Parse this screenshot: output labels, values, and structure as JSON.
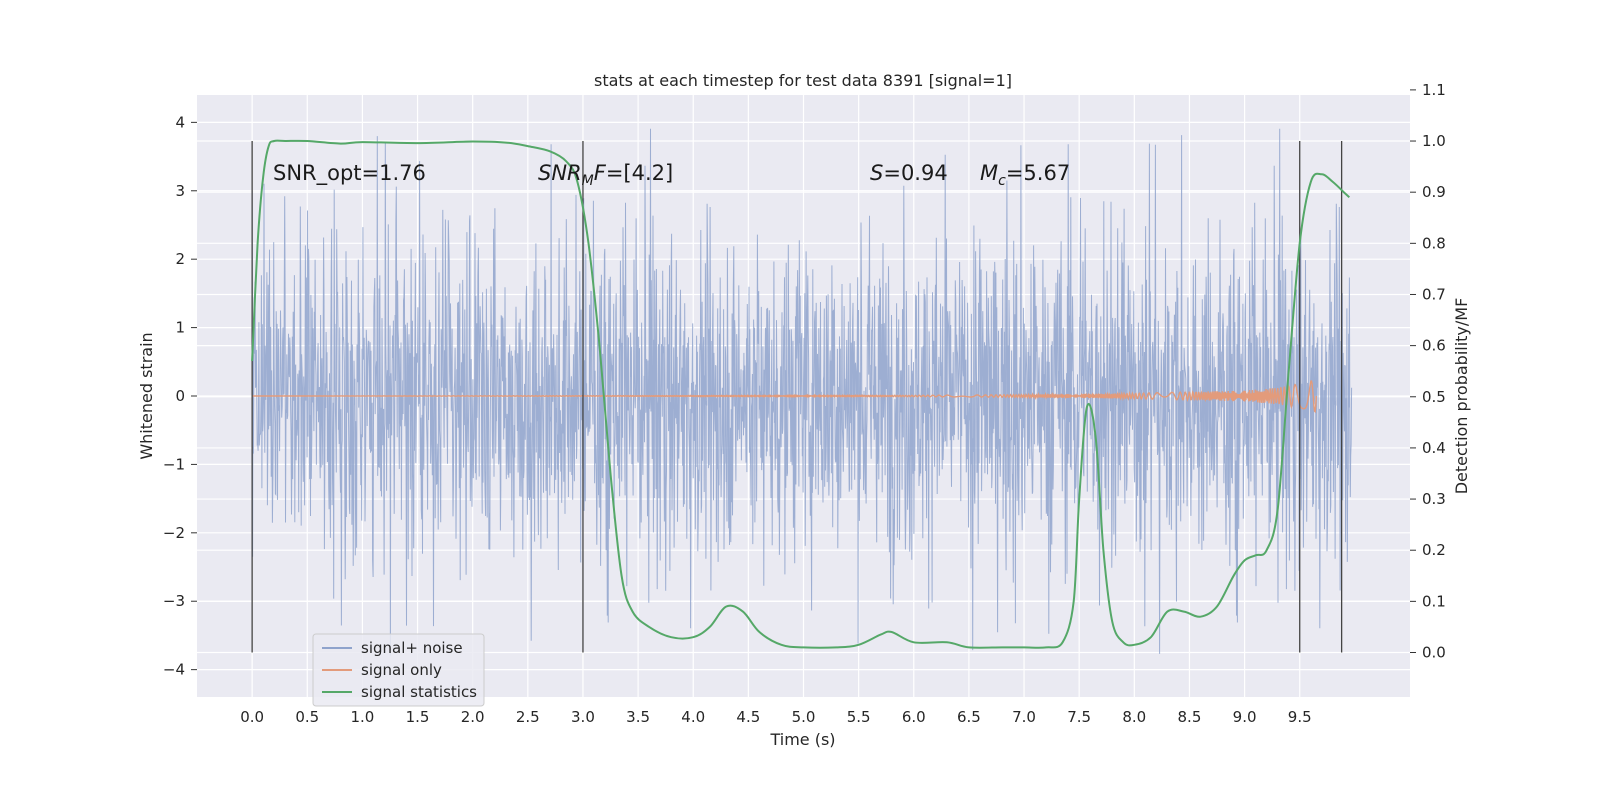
{
  "chart_data": {
    "type": "line",
    "title": "stats at each timestep for test data 8391 [signal=1]",
    "xlabel": "Time (s)",
    "ylabel": "Whitened strain",
    "y2label": "Detection probability/MF",
    "xlim": [
      -0.5,
      10.5
    ],
    "ylim": [
      -4.4,
      4.4
    ],
    "y2lim": [
      -0.087,
      1.09
    ],
    "xticks": [
      "0.0",
      "0.5",
      "1.0",
      "1.5",
      "2.0",
      "2.5",
      "3.0",
      "3.5",
      "4.0",
      "4.5",
      "5.0",
      "5.5",
      "6.0",
      "6.5",
      "7.0",
      "7.5",
      "8.0",
      "8.5",
      "9.0",
      "9.5"
    ],
    "yticks": [
      "4",
      "3",
      "2",
      "1",
      "0",
      "−1",
      "−2",
      "−3",
      "−4"
    ],
    "y2ticks": [
      "1.1",
      "1.0",
      "0.9",
      "0.8",
      "0.7",
      "0.6",
      "0.5",
      "0.4",
      "0.3",
      "0.2",
      "0.1",
      "0.0"
    ],
    "grid": true,
    "legend_position": "lower-left",
    "annotations": {
      "snr_opt": "SNR_opt=1.76",
      "snr_mf_base": "SNR",
      "snr_mf_sub": "M",
      "snr_mf_rest": "F=[4.2]",
      "s_var": "S",
      "s_val": "=0.94",
      "mc_var": "M",
      "mc_sub": "c",
      "mc_val": "=5.67"
    },
    "vlines_x": [
      0.0,
      3.0,
      9.5,
      9.88
    ],
    "series": [
      {
        "name": "signal+ noise",
        "color": "#8fa3cc",
        "axis": "left",
        "x_range": [
          0.0,
          9.97
        ],
        "envelope": {
          "typical": 1.9,
          "peak_max": 4.05,
          "peak_min": -3.95
        }
      },
      {
        "name": "signal only",
        "color": "#e39b7b",
        "axis": "left",
        "x": [
          0.0,
          6.0,
          7.0,
          8.0,
          8.5,
          9.0,
          9.3,
          9.5,
          9.6,
          9.65
        ],
        "amplitude": [
          0.0,
          0.01,
          0.02,
          0.04,
          0.06,
          0.08,
          0.12,
          0.18,
          0.22,
          0.24
        ]
      },
      {
        "name": "signal statistics",
        "color": "#55a868",
        "axis": "right",
        "x": [
          0.0,
          0.05,
          0.1,
          0.15,
          0.2,
          0.3,
          0.5,
          0.8,
          1.0,
          1.5,
          2.0,
          2.3,
          2.5,
          2.7,
          2.85,
          2.95,
          3.05,
          3.15,
          3.25,
          3.35,
          3.45,
          3.6,
          3.8,
          4.0,
          4.15,
          4.3,
          4.45,
          4.6,
          4.8,
          5.0,
          5.3,
          5.5,
          5.7,
          5.8,
          6.0,
          6.3,
          6.5,
          6.8,
          7.0,
          7.2,
          7.35,
          7.45,
          7.5,
          7.57,
          7.65,
          7.72,
          7.8,
          7.9,
          8.0,
          8.15,
          8.3,
          8.45,
          8.6,
          8.75,
          8.9,
          9.0,
          9.1,
          9.2,
          9.3,
          9.4,
          9.5,
          9.6,
          9.7,
          9.8,
          9.9,
          9.95
        ],
        "y": [
          0.57,
          0.8,
          0.93,
          0.99,
          1.0,
          1.0,
          1.0,
          0.995,
          0.998,
          0.996,
          0.999,
          0.997,
          0.99,
          0.98,
          0.96,
          0.92,
          0.8,
          0.6,
          0.35,
          0.15,
          0.08,
          0.05,
          0.03,
          0.03,
          0.05,
          0.09,
          0.08,
          0.04,
          0.015,
          0.01,
          0.01,
          0.015,
          0.035,
          0.04,
          0.02,
          0.02,
          0.01,
          0.01,
          0.01,
          0.01,
          0.02,
          0.1,
          0.3,
          0.48,
          0.42,
          0.2,
          0.06,
          0.02,
          0.015,
          0.03,
          0.08,
          0.08,
          0.07,
          0.09,
          0.15,
          0.18,
          0.19,
          0.2,
          0.28,
          0.55,
          0.8,
          0.92,
          0.935,
          0.92,
          0.9,
          0.89
        ]
      }
    ]
  }
}
